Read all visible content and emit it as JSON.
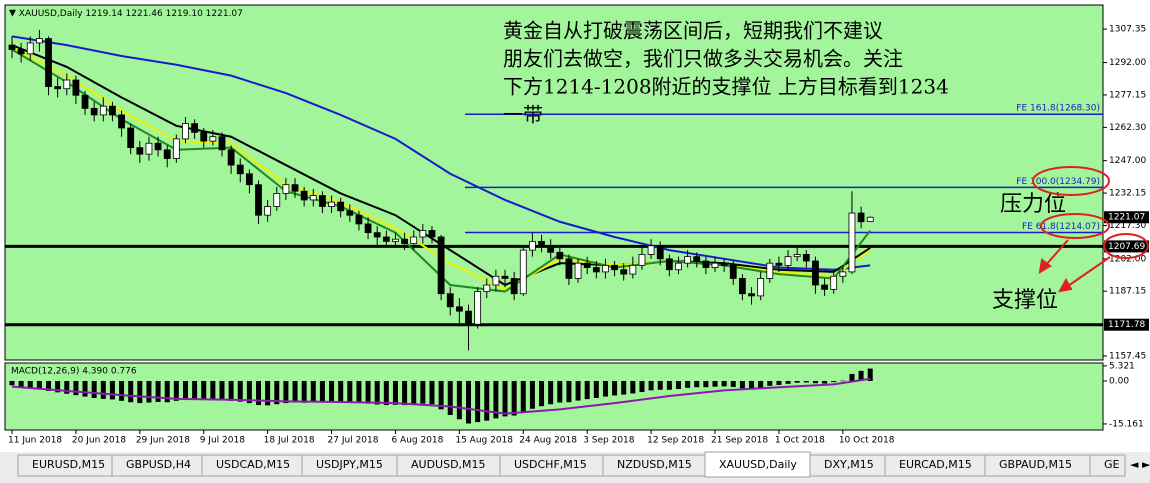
{
  "chart_data": [
    {
      "type": "candlestick",
      "header": "XAUUSD,Daily  1219.14 1221.46 1219.10 1221.07",
      "categories": [
        "11 Jun 2018",
        null,
        null,
        null,
        null,
        null,
        null,
        "20 Jun 2018",
        null,
        null,
        null,
        null,
        null,
        null,
        "29 Jun 2018",
        null,
        null,
        null,
        null,
        null,
        null,
        "9 Jul 2018",
        null,
        null,
        null,
        null,
        null,
        null,
        "18 Jul 2018",
        null,
        null,
        null,
        null,
        null,
        null,
        "27 Jul 2018",
        null,
        null,
        null,
        null,
        null,
        null,
        "6 Aug 2018",
        null,
        null,
        null,
        null,
        null,
        null,
        "15 Aug 2018",
        null,
        null,
        null,
        null,
        null,
        null,
        "24 Aug 2018",
        null,
        null,
        null,
        null,
        null,
        null,
        "3 Sep 2018",
        null,
        null,
        null,
        null,
        null,
        null,
        "12 Sep 2018",
        null,
        null,
        null,
        null,
        null,
        null,
        "21 Sep 2018",
        null,
        null,
        null,
        null,
        null,
        null,
        "1 Oct 2018",
        null,
        null,
        null,
        null,
        null,
        null,
        "10 Oct 2018",
        null,
        null,
        null
      ],
      "open": [
        1300,
        1298,
        1296,
        1301,
        1303,
        1281,
        1280,
        1284,
        1277,
        1271,
        1268,
        1272,
        1268,
        1262,
        1253,
        1250,
        1255,
        1252,
        1248,
        1257,
        1264,
        1260,
        1256,
        1258,
        1252,
        1245,
        1241,
        1236,
        1222,
        1226,
        1232,
        1236,
        1233,
        1229,
        1231,
        1226,
        1228,
        1224,
        1222,
        1218,
        1214,
        1212,
        1210,
        1211,
        1209,
        1212,
        1215,
        1212,
        1186,
        1180,
        1178,
        1172,
        1187,
        1190,
        1194,
        1193,
        1186,
        1206,
        1210,
        1208,
        1205,
        1202,
        1193,
        1200,
        1198,
        1196,
        1199,
        1197,
        1195,
        1199,
        1204,
        1208,
        1202,
        1197,
        1200,
        1203,
        1201,
        1198,
        1200,
        1199,
        1193,
        1186,
        1185,
        1193,
        1200,
        1199,
        1203,
        1204,
        1201,
        1190,
        1188,
        1194,
        1196,
        1223,
        1219.14
      ],
      "high": [
        1304,
        1301,
        1304,
        1307,
        1304,
        1285,
        1287,
        1286,
        1279,
        1274,
        1276,
        1274,
        1270,
        1264,
        1256,
        1258,
        1258,
        1254,
        1259,
        1267,
        1266,
        1262,
        1261,
        1260,
        1254,
        1248,
        1243,
        1238,
        1229,
        1235,
        1239,
        1239,
        1235,
        1234,
        1233,
        1231,
        1230,
        1227,
        1224,
        1221,
        1217,
        1215,
        1214,
        1214,
        1215,
        1218,
        1217,
        1213,
        1189,
        1184,
        1181,
        1189,
        1193,
        1197,
        1197,
        1196,
        1208,
        1214,
        1213,
        1211,
        1207,
        1204,
        1202,
        1203,
        1201,
        1202,
        1201,
        1200,
        1203,
        1207,
        1211,
        1210,
        1204,
        1203,
        1206,
        1205,
        1203,
        1203,
        1202,
        1201,
        1195,
        1189,
        1196,
        1202,
        1203,
        1206,
        1208,
        1206,
        1203,
        1193,
        1197,
        1199,
        1233,
        1226,
        1221.46
      ],
      "low": [
        1294,
        1292,
        1293,
        1297,
        1277,
        1276,
        1277,
        1273,
        1268,
        1265,
        1265,
        1265,
        1258,
        1250,
        1246,
        1247,
        1249,
        1244,
        1246,
        1255,
        1257,
        1253,
        1254,
        1249,
        1241,
        1237,
        1232,
        1218,
        1219,
        1224,
        1229,
        1230,
        1226,
        1226,
        1223,
        1223,
        1221,
        1219,
        1215,
        1211,
        1208,
        1207,
        1207,
        1206,
        1206,
        1209,
        1209,
        1183,
        1176,
        1171,
        1160,
        1170,
        1184,
        1187,
        1189,
        1183,
        1185,
        1203,
        1205,
        1202,
        1199,
        1190,
        1191,
        1195,
        1193,
        1193,
        1194,
        1192,
        1193,
        1197,
        1202,
        1199,
        1194,
        1195,
        1198,
        1198,
        1195,
        1196,
        1196,
        1190,
        1183,
        1181,
        1183,
        1191,
        1196,
        1197,
        1201,
        1198,
        1186,
        1185,
        1186,
        1191,
        1195,
        1216,
        1219.1
      ],
      "close": [
        1298,
        1296,
        1301,
        1303,
        1281,
        1280,
        1284,
        1277,
        1271,
        1268,
        1272,
        1268,
        1262,
        1253,
        1250,
        1255,
        1252,
        1248,
        1257,
        1264,
        1260,
        1256,
        1258,
        1252,
        1245,
        1241,
        1236,
        1222,
        1226,
        1232,
        1236,
        1233,
        1229,
        1231,
        1226,
        1228,
        1224,
        1222,
        1218,
        1214,
        1212,
        1210,
        1211,
        1209,
        1212,
        1215,
        1212,
        1186,
        1180,
        1178,
        1172,
        1187,
        1190,
        1194,
        1193,
        1186,
        1206,
        1210,
        1208,
        1205,
        1202,
        1193,
        1200,
        1198,
        1196,
        1199,
        1197,
        1195,
        1199,
        1204,
        1208,
        1202,
        1197,
        1200,
        1203,
        1201,
        1198,
        1200,
        1199,
        1193,
        1186,
        1185,
        1193,
        1200,
        1199,
        1203,
        1204,
        1201,
        1190,
        1188,
        1194,
        1196,
        1223,
        1219,
        1221.07
      ],
      "candle_colors": {
        "up": "#ffffff",
        "down": "#000000",
        "outline": "#000000"
      },
      "lines": [
        {
          "color": "#1a1acc",
          "x": [
            0,
            6,
            12,
            18,
            24,
            30,
            36,
            42,
            48,
            54,
            60,
            66,
            72,
            78,
            84,
            90,
            94
          ],
          "values": [
            1304,
            1300,
            1295,
            1291,
            1286,
            1278,
            1268,
            1257,
            1241,
            1229,
            1219,
            1212,
            1206,
            1202,
            1198,
            1197,
            1199
          ]
        },
        {
          "color": "#000000",
          "x": [
            0,
            6,
            12,
            18,
            24,
            30,
            36,
            42,
            48,
            54,
            60,
            66,
            72,
            78,
            84,
            90,
            94
          ],
          "values": [
            1300,
            1290,
            1276,
            1263,
            1258,
            1245,
            1232,
            1222,
            1206,
            1190,
            1200,
            1199,
            1201,
            1200,
            1197,
            1196,
            1207
          ]
        },
        {
          "color": "#f0f000",
          "x": [
            0,
            6,
            12,
            18,
            24,
            30,
            36,
            42,
            48,
            54,
            60,
            66,
            72,
            78,
            84,
            90,
            94
          ],
          "values": [
            1299,
            1286,
            1270,
            1256,
            1255,
            1236,
            1228,
            1216,
            1200,
            1188,
            1202,
            1199,
            1201,
            1199,
            1196,
            1194,
            1206
          ]
        },
        {
          "color": "#1e8a1e",
          "x": [
            0,
            6,
            12,
            18,
            24,
            30,
            36,
            42,
            48,
            54,
            60,
            66,
            72,
            78,
            84,
            90,
            94
          ],
          "values": [
            1298,
            1283,
            1266,
            1252,
            1253,
            1233,
            1226,
            1214,
            1190,
            1187,
            1204,
            1198,
            1201,
            1199,
            1195,
            1193,
            1215
          ]
        }
      ],
      "ylim": [
        1155.6,
        1318.4
      ],
      "yticks": [
        1307.35,
        {
          "value": 1292,
          "label": "1292.00"
        },
        1277.15,
        {
          "value": 1262.3,
          "label": "1262.30"
        },
        {
          "value": 1247,
          "label": "1247.00"
        },
        1232.15,
        {
          "value": 1217.3,
          "label": "1217.30"
        },
        {
          "value": 1202,
          "label": "1202.00"
        },
        1187.15,
        1157.45
      ],
      "hlines": [
        1207.69,
        1171.78
      ],
      "hline_color": "#000000",
      "price_labels": [
        1221.07,
        1207.69,
        1171.78
      ],
      "fe_color": "#1a1acc",
      "fe_levels": [
        {
          "value": 1268.3,
          "label": "FE 161.8(1268.30)"
        },
        {
          "value": 1234.79,
          "label": "FE 100.0(1234.79)"
        },
        {
          "value": 1214.07,
          "label": "FE 61.8(1214.07)"
        }
      ],
      "annotations": {
        "note": [
          "黄金自从打破震荡区间后，短期我们不建议",
          "朋友们去做空，我们只做多头交易机会。关注",
          "下方1214-1208附近的支撑位 上方目标看到1234",
          "一带"
        ],
        "resistance": "压力位",
        "support": "支撑位"
      }
    },
    {
      "type": "macd",
      "header": "MACD(12,26,9) 4.390 0.776",
      "color": "#000000",
      "values": [
        -1.5,
        -2,
        -2.3,
        -2.5,
        -3.5,
        -4,
        -4.5,
        -5,
        -5.5,
        -6,
        -6.3,
        -6.5,
        -7,
        -7.5,
        -7.8,
        -7.6,
        -7.4,
        -7.5,
        -7,
        -6.5,
        -6.3,
        -6.4,
        -6.2,
        -6.5,
        -7,
        -7.3,
        -7.8,
        -8.5,
        -8.6,
        -8.2,
        -7.8,
        -7.6,
        -7.7,
        -7.5,
        -7.6,
        -7.4,
        -7.5,
        -7.6,
        -7.8,
        -8,
        -8.3,
        -8.5,
        -8.4,
        -8.5,
        -8.3,
        -8,
        -8.2,
        -10,
        -12,
        -13.5,
        -15,
        -14.5,
        -14,
        -13.2,
        -12.5,
        -12.2,
        -11,
        -9.8,
        -8.9,
        -8.2,
        -7.6,
        -7.5,
        -6.9,
        -6.4,
        -6,
        -5.5,
        -5.1,
        -4.8,
        -4.4,
        -3.9,
        -3.3,
        -3.1,
        -3.1,
        -2.8,
        -2.4,
        -2.2,
        -2.2,
        -2,
        -1.9,
        -2.1,
        -2.6,
        -2.8,
        -2.3,
        -1.7,
        -1.4,
        -1,
        -0.6,
        -0.5,
        -0.8,
        -0.9,
        -0.4,
        0.1,
        2.5,
        3.6,
        4.39
      ],
      "signal": {
        "color": "#8a1ab0",
        "x": [
          0,
          6,
          12,
          18,
          24,
          30,
          36,
          42,
          48,
          54,
          60,
          66,
          72,
          78,
          84,
          90,
          94
        ],
        "values": [
          -2,
          -3.5,
          -5,
          -6.3,
          -6.6,
          -7.2,
          -7.4,
          -7.8,
          -9,
          -11.5,
          -10,
          -7.8,
          -5.3,
          -3.3,
          -2.2,
          -1.2,
          0.776
        ]
      },
      "ylim": [
        -17.3,
        6.0
      ],
      "yticks": [
        5.321,
        {
          "value": 0,
          "label": "0.00"
        },
        -15.161
      ]
    }
  ],
  "tabs": {
    "items": [
      "EURUSD,M15",
      "GBPUSD,H4",
      "USDCAD,M15",
      "USDJPY,M15",
      "AUDUSD,M15",
      "USDCHF,M15",
      "NZDUSD,M15",
      "XAUUSD,Daily",
      "DXY,M15",
      "EURCAD,M15",
      "GBPAUD,M15",
      "GE"
    ],
    "active": 7
  }
}
